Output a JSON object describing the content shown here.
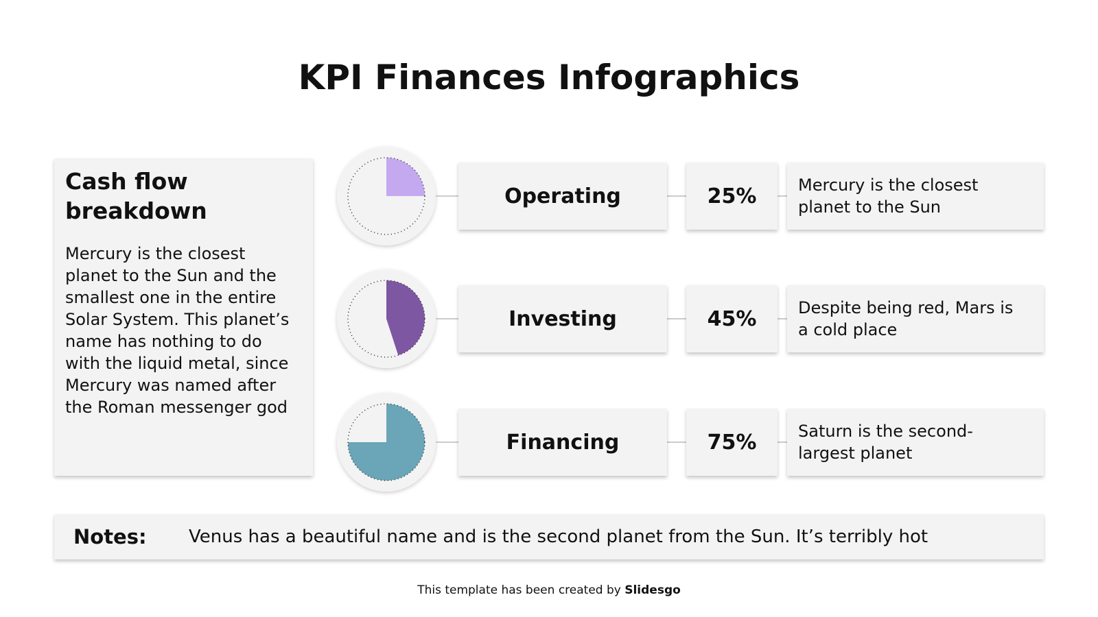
{
  "title": "KPI Finances Infographics",
  "sidebar": {
    "heading": "Cash flow breakdown",
    "body": "Mercury is the closest planet to the Sun and the smallest one in the entire Solar System. This planet’s name has nothing to do with the liquid metal, since Mercury was named after the Roman messenger god"
  },
  "chart_data": {
    "type": "gauge",
    "categories": [
      "Operating",
      "Investing",
      "Financing"
    ],
    "values": [
      25,
      45,
      75
    ],
    "value_labels": [
      "25%",
      "45%",
      "75%"
    ],
    "colors": [
      "#c4a8f0",
      "#7e57a3",
      "#6aa5b8"
    ],
    "descriptions": [
      "Mercury is the closest planet to the Sun",
      "Despite being red, Mars is a cold place",
      "Saturn is the second-largest planet"
    ]
  },
  "notes": {
    "label": "Notes:",
    "text": "Venus has a beautiful name and is the second planet from the Sun. It’s terribly hot"
  },
  "footer": {
    "text": "This template has been created by",
    "brand": "Slidesgo"
  }
}
